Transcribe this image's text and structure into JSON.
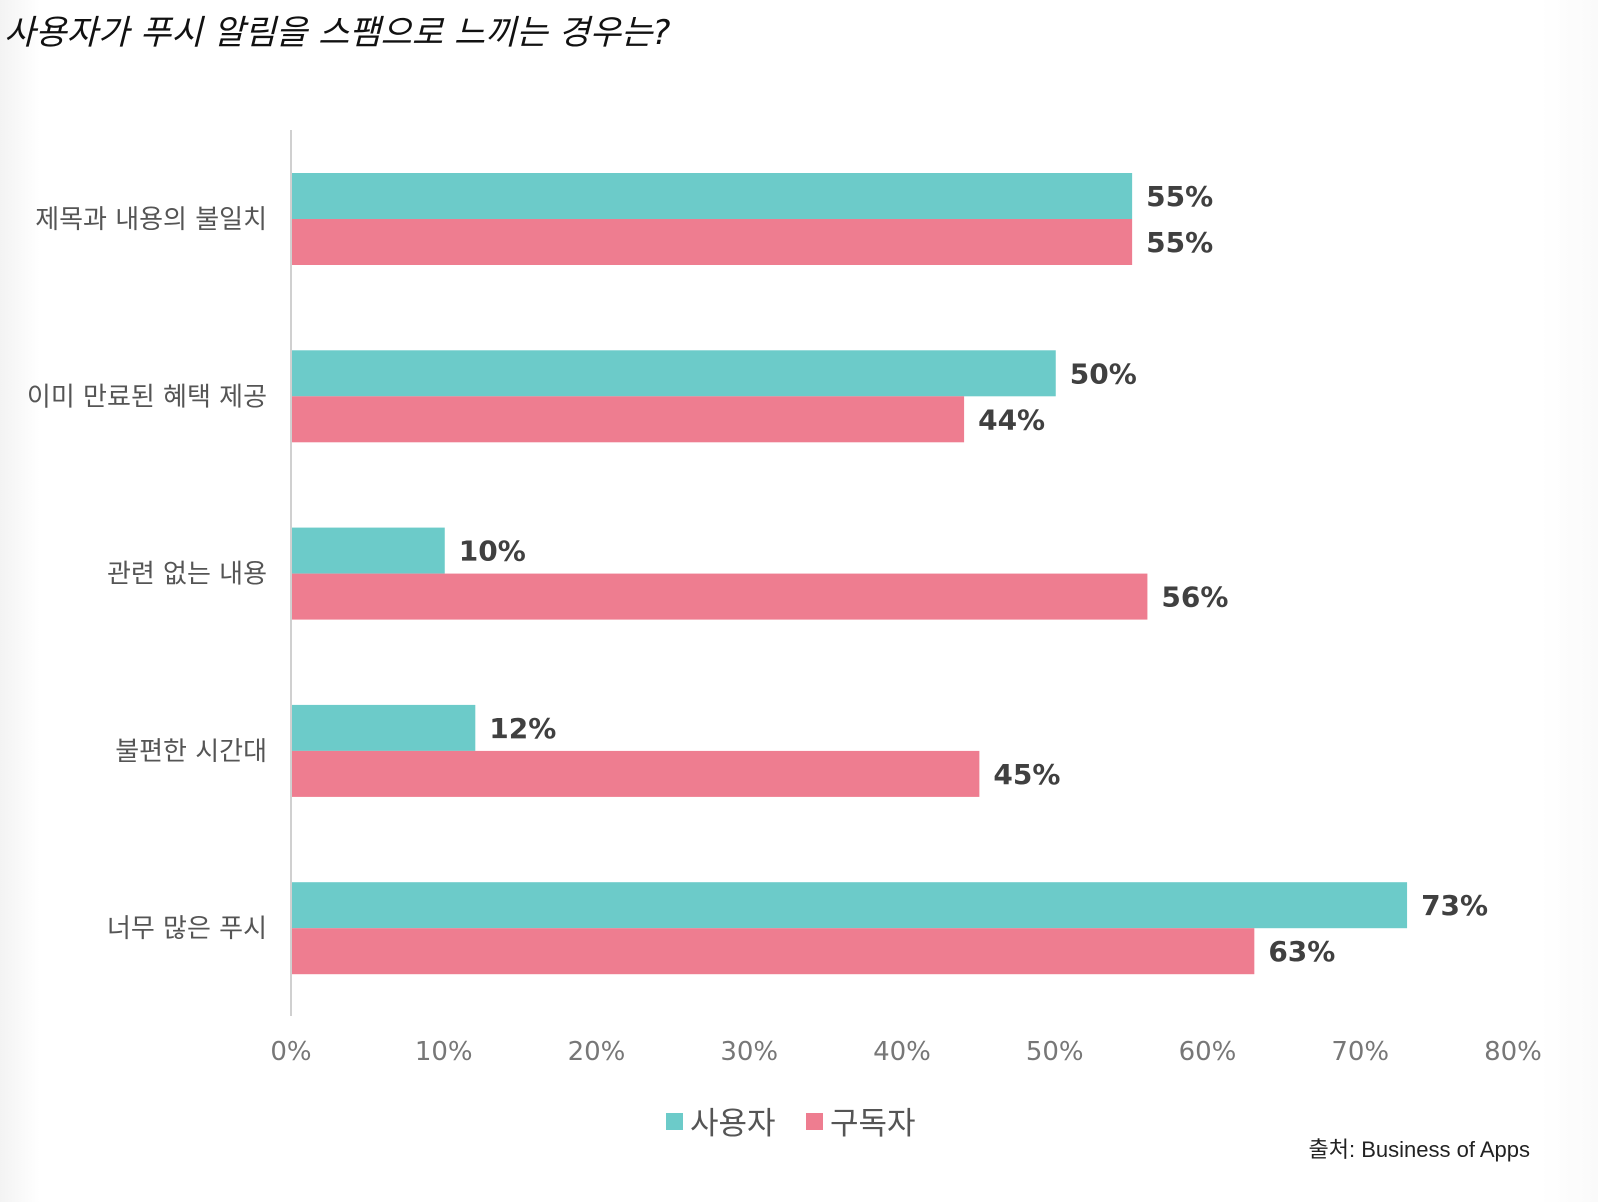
{
  "chart_data": {
    "type": "bar",
    "orientation": "horizontal",
    "title": "사용자가 푸시 알림을 스팸으로 느끼는 경우는?",
    "categories": [
      "제목과 내용의 불일치",
      "이미 만료된 혜택 제공",
      "관련 없는 내용",
      "불편한 시간대",
      "너무 많은 푸시"
    ],
    "series": [
      {
        "name": "사용자",
        "color": "#6CCBC9",
        "values": [
          55,
          50,
          10,
          12,
          73
        ]
      },
      {
        "name": "구독자",
        "color": "#EE7D90",
        "values": [
          55,
          44,
          56,
          45,
          63
        ]
      }
    ],
    "xlim": [
      0,
      80
    ],
    "xticks": [
      "0%",
      "10%",
      "20%",
      "30%",
      "40%",
      "50%",
      "60%",
      "70%",
      "80%"
    ],
    "value_suffix": "%",
    "legend_position": "bottom",
    "grid": false,
    "source": "출처: Business of Apps"
  }
}
